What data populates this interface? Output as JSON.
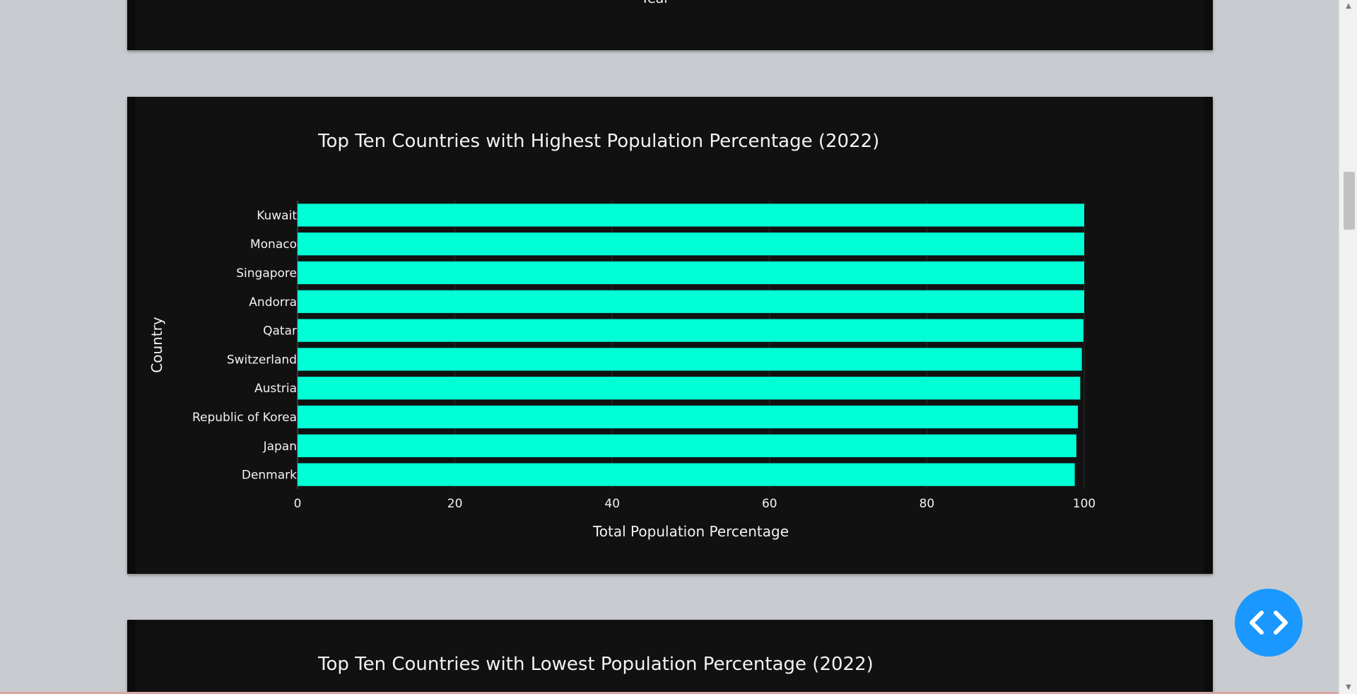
{
  "previous_chart": {
    "xlabel": "Year"
  },
  "main_chart": {
    "title": "Top Ten Countries with Highest Population Percentage (2022)"
  },
  "next_chart": {
    "title": "Top Ten Countries with Lowest Population Percentage (2022)"
  },
  "chart_data": {
    "type": "bar",
    "orientation": "horizontal",
    "title": "Top Ten Countries with Highest Population Percentage (2022)",
    "xlabel": "Total Population Percentage",
    "ylabel": "Country",
    "categories": [
      "Kuwait",
      "Monaco",
      "Singapore",
      "Andorra",
      "Qatar",
      "Switzerland",
      "Austria",
      "Republic of Korea",
      "Japan",
      "Denmark"
    ],
    "values": [
      100,
      100,
      100,
      100,
      99.9,
      99.7,
      99.5,
      99.2,
      99.0,
      98.8
    ],
    "xlim": [
      0,
      100
    ],
    "xticks": [
      "0",
      "20",
      "40",
      "60",
      "80",
      "100"
    ],
    "bar_color": "#00ffd5",
    "background": "#111111",
    "grid": true
  },
  "colors": {
    "page_background": "#c8cbcf",
    "card_background": "#111111",
    "accent_button": "#1a98ff"
  },
  "icons": {
    "code_button": "code-brackets-icon"
  }
}
